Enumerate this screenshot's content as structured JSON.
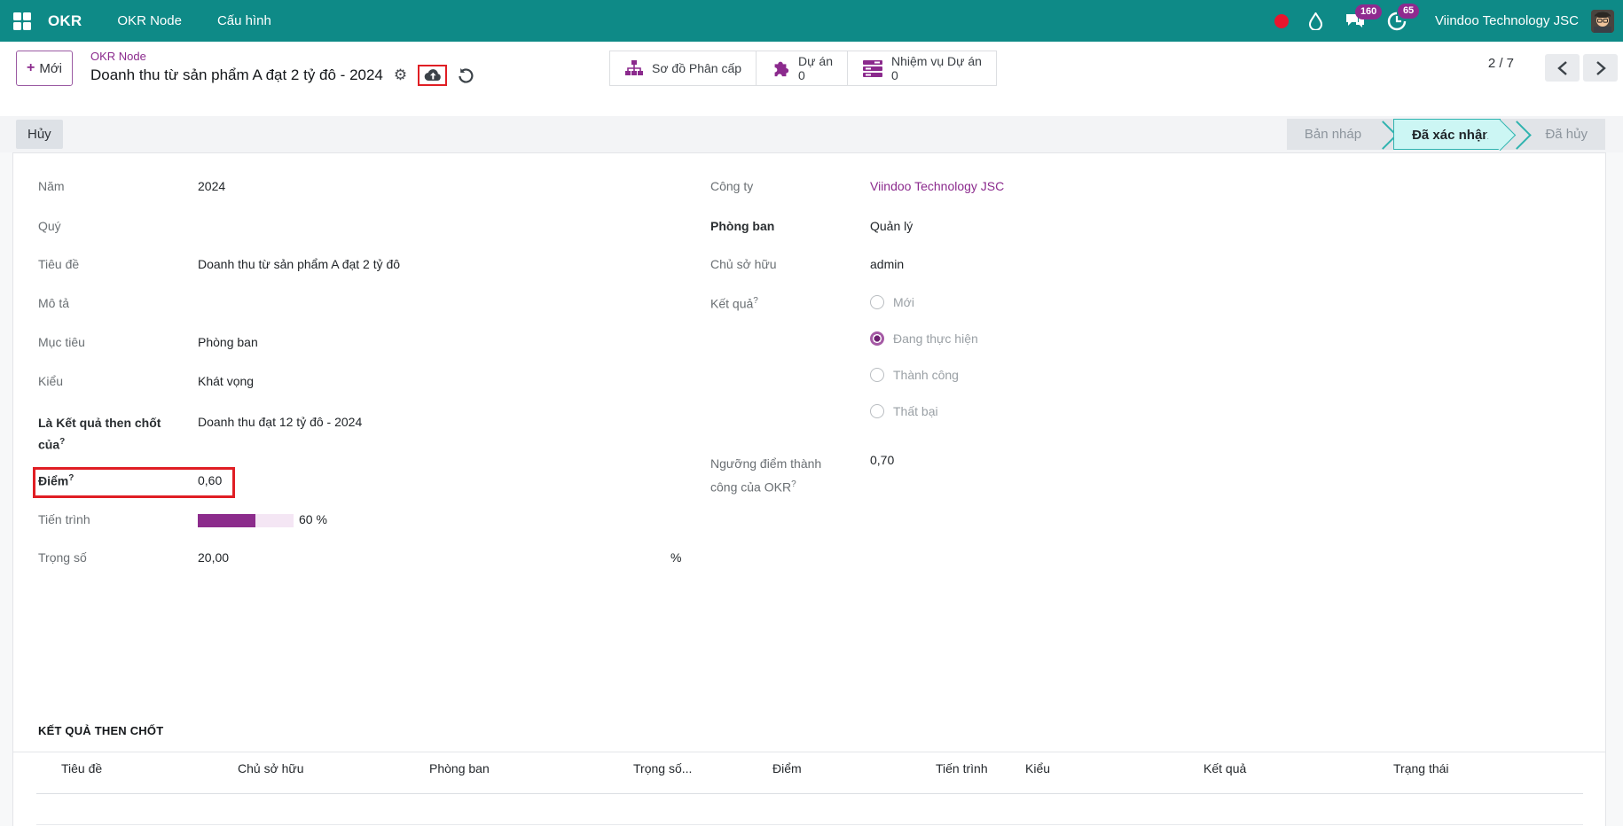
{
  "navbar": {
    "app_name": "OKR",
    "menu_okr_node": "OKR Node",
    "menu_config": "Cấu hình",
    "messages_badge": "160",
    "activities_badge": "65",
    "company": "Viindoo Technology JSC",
    "colors": {
      "navbar_teal": "#0e8a87",
      "badge_purple": "#8f2a8f",
      "accent_purple": "#8b2a8d",
      "annotation_red": "#e01e24",
      "stage_active_bg": "#ccf6f4"
    }
  },
  "control_panel": {
    "new_button": "Mới",
    "breadcrumb": "OKR Node",
    "title": "Doanh thu từ sản phẩm A đạt 2 tỷ đô - 2024",
    "stat_buttons": [
      {
        "icon": "sitemap-icon",
        "label": "Sơ đồ Phân cấp",
        "value": ""
      },
      {
        "icon": "puzzle-icon",
        "label": "Dự án",
        "value": "0"
      },
      {
        "icon": "tasks-icon",
        "label": "Nhiệm vụ Dự án",
        "value": "0"
      }
    ],
    "pager": "2 / 7"
  },
  "statusbar": {
    "cancel_button": "Hủy",
    "stages": [
      {
        "label": "Bản nháp",
        "active": false
      },
      {
        "label": "Đã xác nhận",
        "active": true
      },
      {
        "label": "Đã hủy",
        "active": false
      }
    ]
  },
  "form": {
    "left": {
      "year": {
        "label": "Năm",
        "value": "2024"
      },
      "quarter": {
        "label": "Quý",
        "value": ""
      },
      "title": {
        "label": "Tiêu đề",
        "value": "Doanh thu từ sản phẩm A đạt 2 tỷ đô"
      },
      "description": {
        "label": "Mô tả",
        "value": ""
      },
      "target": {
        "label": "Mục tiêu",
        "value": "Phòng ban"
      },
      "kind": {
        "label": "Kiểu",
        "value": "Khát vọng"
      },
      "key_result_of": {
        "label": "Là Kết quả then chốt của",
        "help": "?",
        "value": "Doanh thu đạt 12 tỷ đô - 2024"
      },
      "score": {
        "label": "Điểm",
        "help": "?",
        "value": "0,60"
      },
      "progress": {
        "label": "Tiến trình",
        "percent": 60,
        "text": "60 %"
      },
      "weight": {
        "label": "Trọng số",
        "value": "20,00",
        "unit": "%"
      }
    },
    "right": {
      "company": {
        "label": "Công ty",
        "value": "Viindoo Technology JSC"
      },
      "department": {
        "label": "Phòng ban",
        "value": "Quản lý"
      },
      "owner": {
        "label": "Chủ sở hữu",
        "value": "admin"
      },
      "result": {
        "label": "Kết quả",
        "help": "?",
        "options": [
          {
            "label": "Mới",
            "selected": false
          },
          {
            "label": "Đang thực hiện",
            "selected": true
          },
          {
            "label": "Thành công",
            "selected": false
          },
          {
            "label": "Thất bại",
            "selected": false
          }
        ]
      },
      "threshold": {
        "label_line1": "Ngưỡng điểm thành",
        "label_line2": "công của OKR",
        "help": "?",
        "value": "0,70"
      }
    }
  },
  "section": {
    "title": "KẾT QUẢ THEN CHỐT",
    "table_headers": [
      "Tiêu đề",
      "Chủ sở hữu",
      "Phòng ban",
      "Trọng số...",
      "Điểm",
      "Tiến trình",
      "Kiểu",
      "Kết quả",
      "Trạng thái"
    ]
  }
}
